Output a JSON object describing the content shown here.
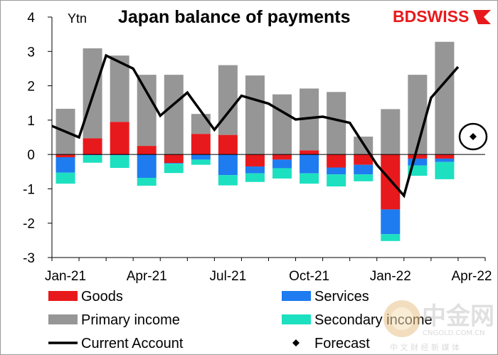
{
  "chart_data": {
    "type": "bar",
    "title": "Japan balance of payments",
    "unit_label": "Ytn",
    "brand": "BDSWISS",
    "ylim": [
      -3,
      4
    ],
    "yticks": [
      4,
      3,
      2,
      1,
      0,
      -1,
      -2,
      -3
    ],
    "x_tick_labels": [
      "Jan-21",
      "Apr-21",
      "Jul-21",
      "Oct-21",
      "Jan-22",
      "Apr-22"
    ],
    "x_tick_indices": [
      0,
      3,
      6,
      9,
      12,
      15
    ],
    "categories": [
      "Jan-21",
      "Feb-21",
      "Mar-21",
      "Apr-21",
      "May-21",
      "Jun-21",
      "Jul-21",
      "Aug-21",
      "Sep-21",
      "Oct-21",
      "Nov-21",
      "Dec-21",
      "Jan-22",
      "Feb-22",
      "Mar-22",
      "Apr-22"
    ],
    "series": [
      {
        "name": "Goods",
        "color": "#e8191c",
        "values": [
          -0.08,
          0.47,
          0.95,
          0.25,
          -0.25,
          0.6,
          0.57,
          -0.35,
          -0.15,
          0.12,
          -0.38,
          -0.3,
          -1.6,
          -0.12,
          -0.12,
          null
        ]
      },
      {
        "name": "Services",
        "color": "#1e7cf0",
        "values": [
          -0.45,
          -0.02,
          -0.02,
          -0.68,
          -0.02,
          -0.15,
          -0.6,
          -0.2,
          -0.25,
          -0.55,
          -0.2,
          -0.28,
          -0.72,
          -0.2,
          -0.1,
          null
        ]
      },
      {
        "name": "Primary income",
        "color": "#969696",
        "values": [
          1.33,
          2.62,
          1.93,
          2.07,
          2.32,
          0.58,
          2.03,
          2.3,
          1.75,
          1.8,
          1.82,
          0.52,
          1.32,
          2.32,
          3.28,
          null
        ]
      },
      {
        "name": "Secondary income",
        "color": "#1de0c0",
        "values": [
          -0.32,
          -0.22,
          -0.37,
          -0.23,
          -0.27,
          -0.15,
          -0.3,
          -0.25,
          -0.3,
          -0.3,
          -0.35,
          -0.2,
          -0.2,
          -0.3,
          -0.5,
          null
        ]
      }
    ],
    "current_account": {
      "name": "Current Account",
      "color": "#000000",
      "values": [
        0.83,
        0.5,
        2.88,
        2.5,
        1.13,
        1.8,
        0.72,
        1.71,
        1.48,
        1.02,
        1.1,
        0.92,
        -0.3,
        -1.2,
        1.65,
        2.55
      ]
    },
    "forecast": {
      "name": "Forecast",
      "index": 15.5,
      "value": 0.52
    },
    "watermark": {
      "text": "中金网",
      "sub": "CNGOLD.COM.CN",
      "tagline": "中 文 财 经 新 媒 体"
    }
  }
}
